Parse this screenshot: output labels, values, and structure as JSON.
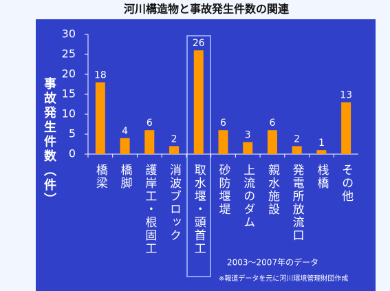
{
  "chart_data": {
    "type": "bar",
    "title": "河川構造物と事故発生件数の関連",
    "y_label": "事故発生件数（件）",
    "categories": [
      "橋梁",
      "橋脚",
      "護岸工・根固工",
      "消波ブロック",
      "取水堰・頭首工",
      "砂防堰堤",
      "上流のダム",
      "親水施設",
      "発電所放流口",
      "桟橋",
      "その他"
    ],
    "values": [
      18,
      4,
      6,
      2,
      26,
      6,
      3,
      6,
      2,
      1,
      13
    ],
    "color": "#ff9900",
    "ylim": [
      0,
      30
    ],
    "yticks": [
      0,
      5,
      10,
      15,
      20,
      25,
      30
    ],
    "annotations": [
      "2003～2007年のデータ",
      "※報道データを元に河川環境管理財団作成"
    ]
  }
}
